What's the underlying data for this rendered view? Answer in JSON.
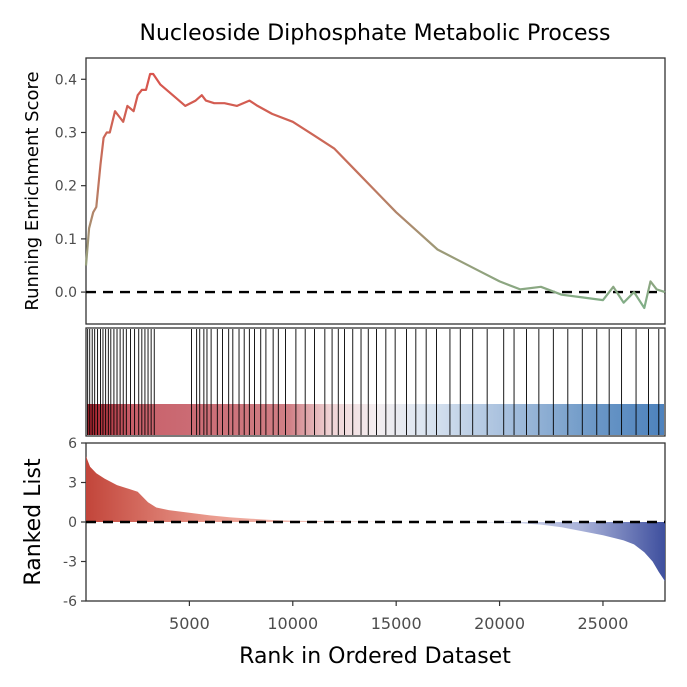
{
  "chart_data": {
    "type": "line",
    "title": "Nucleoside Diphosphate Metabolic Process",
    "xlabel": "Rank in Ordered Dataset",
    "xlim": [
      0,
      28000
    ],
    "x_ticks": [
      "5000",
      "10000",
      "15000",
      "20000",
      "25000"
    ],
    "x_tick_values": [
      5000,
      10000,
      15000,
      20000,
      25000
    ],
    "panels": {
      "running_score": {
        "ylabel": "Running Enrichment Score",
        "ylim": [
          -0.06,
          0.44
        ],
        "y_ticks": [
          "0.0",
          "0.1",
          "0.2",
          "0.3",
          "0.4"
        ],
        "y_tick_values": [
          0.0,
          0.1,
          0.2,
          0.3,
          0.4
        ],
        "reference_line": 0.0,
        "series": [
          {
            "x": [
              0,
              150,
              350,
              500,
              700,
              850,
              1000,
              1150,
              1400,
              1600,
              1800,
              2000,
              2300,
              2500,
              2700,
              2900,
              3100,
              3250,
              3600,
              4200,
              4800,
              5300,
              5600,
              5800,
              6200,
              6700,
              7300,
              7900,
              8300,
              9000,
              10000,
              11000,
              12000,
              13000,
              14000,
              15000,
              16000,
              17000,
              18000,
              19000,
              20000,
              21000,
              22000,
              23000,
              24000,
              25000,
              25500,
              26000,
              26500,
              27000,
              27300,
              27600,
              28000
            ],
            "values": [
              0.05,
              0.12,
              0.15,
              0.16,
              0.24,
              0.29,
              0.3,
              0.3,
              0.34,
              0.33,
              0.32,
              0.35,
              0.34,
              0.37,
              0.38,
              0.38,
              0.41,
              0.41,
              0.39,
              0.37,
              0.35,
              0.36,
              0.37,
              0.36,
              0.355,
              0.355,
              0.35,
              0.36,
              0.35,
              0.335,
              0.32,
              0.295,
              0.27,
              0.23,
              0.19,
              0.15,
              0.115,
              0.08,
              0.06,
              0.04,
              0.02,
              0.005,
              0.01,
              -0.005,
              -0.01,
              -0.015,
              0.01,
              -0.02,
              0.0,
              -0.03,
              0.02,
              0.005,
              0.0
            ]
          }
        ]
      },
      "hits": {
        "ranks": [
          80,
          180,
          300,
          420,
          560,
          700,
          820,
          950,
          1080,
          1200,
          1350,
          1500,
          1650,
          1800,
          1950,
          2150,
          2350,
          2550,
          2700,
          2850,
          3000,
          3150,
          3300,
          5100,
          5350,
          5500,
          5700,
          5850,
          6050,
          6350,
          6600,
          6900,
          7100,
          7400,
          7650,
          7900,
          8150,
          8450,
          8700,
          9050,
          9300,
          9650,
          10150,
          10600,
          11050,
          11550,
          11900,
          12200,
          12500,
          12900,
          13300,
          13650,
          14050,
          14500,
          14950,
          15500,
          15950,
          16450,
          16950,
          17600,
          18100,
          18700,
          19400,
          20200,
          20700,
          21300,
          21900,
          22600,
          23300,
          24000,
          24700,
          25300,
          25900,
          26600,
          27200,
          27700
        ]
      },
      "ranked_list": {
        "ylabel": "Ranked List",
        "ylim": [
          -6,
          6
        ],
        "y_ticks": [
          "6",
          "3",
          "0",
          "-3",
          "-6"
        ],
        "y_tick_values": [
          6,
          3,
          0,
          -3,
          -6
        ],
        "reference_line": 0,
        "x": [
          0,
          200,
          500,
          900,
          1500,
          2500,
          3000,
          3400,
          4000,
          5000,
          6000,
          7000,
          8000,
          9000,
          10000,
          12000,
          14000,
          16000,
          18000,
          20000,
          21000,
          22000,
          23000,
          24000,
          25000,
          26000,
          26500,
          27000,
          27400,
          27700,
          28000
        ],
        "values": [
          5.0,
          4.2,
          3.7,
          3.3,
          2.8,
          2.3,
          1.5,
          1.1,
          0.9,
          0.7,
          0.5,
          0.35,
          0.25,
          0.15,
          0.1,
          0.05,
          0.02,
          0.0,
          -0.02,
          -0.05,
          -0.1,
          -0.2,
          -0.4,
          -0.7,
          -1.0,
          -1.4,
          -1.7,
          -2.3,
          -3.0,
          -3.8,
          -4.5
        ]
      }
    },
    "colors": {
      "score_high": "#d9544d",
      "score_low": "#7fb089",
      "hit_line": "#000000",
      "band_pos": "#b2182b",
      "band_neg": "#2166ac",
      "list_pos": "#d6604d",
      "list_neg": "#4c5ea8"
    }
  }
}
